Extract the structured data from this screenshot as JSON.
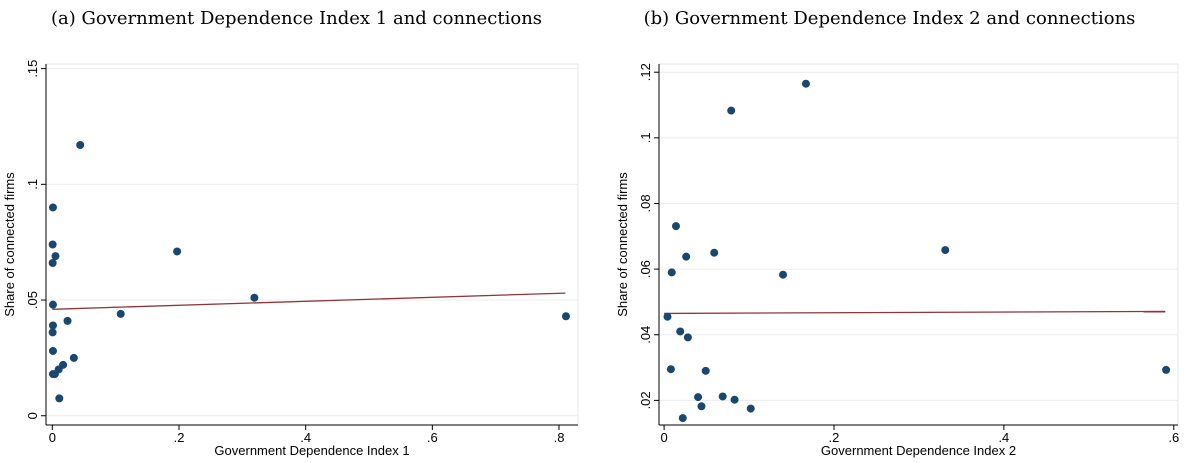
{
  "chart_data": [
    {
      "type": "scatter",
      "panel_caption": "(a) Government Dependence Index 1 and connections",
      "xlabel": "Government Dependence Index 1",
      "ylabel": "Share of connected firms",
      "xlim": [
        -0.01,
        0.83
      ],
      "ylim": [
        -0.004,
        0.152
      ],
      "xticks": [
        0,
        0.2,
        0.4,
        0.6,
        0.8
      ],
      "xtick_labels": [
        "0",
        ".2",
        ".4",
        ".6",
        ".8"
      ],
      "yticks": [
        0,
        0.05,
        0.1,
        0.15
      ],
      "ytick_labels": [
        "0",
        ".05",
        ".1",
        ".15"
      ],
      "grid": true,
      "legend": "none",
      "marker_color": "#1a476f",
      "fit_color": "#90353b",
      "points": [
        [
          0.044,
          0.117
        ],
        [
          0.001,
          0.09
        ],
        [
          0.0005,
          0.074
        ],
        [
          0.005,
          0.069
        ],
        [
          0.0005,
          0.066
        ],
        [
          0.197,
          0.071
        ],
        [
          0.319,
          0.051
        ],
        [
          0.001,
          0.048
        ],
        [
          0.108,
          0.044
        ],
        [
          0.811,
          0.043
        ],
        [
          0.024,
          0.041
        ],
        [
          0.001,
          0.039
        ],
        [
          0.0005,
          0.036
        ],
        [
          0.001,
          0.028
        ],
        [
          0.034,
          0.025
        ],
        [
          0.017,
          0.022
        ],
        [
          0.01,
          0.02
        ],
        [
          0.004,
          0.018
        ],
        [
          0.001,
          0.018
        ],
        [
          0.011,
          0.0075
        ]
      ],
      "fit_line": [
        [
          0,
          0.046
        ],
        [
          0.81,
          0.053
        ]
      ]
    },
    {
      "type": "scatter",
      "panel_caption": "(b) Government Dependence Index 2 and connections",
      "xlabel": "Government Dependence Index 2",
      "ylabel": "Share of connected firms",
      "xlim": [
        -0.006,
        0.605
      ],
      "ylim": [
        0.0125,
        0.1225
      ],
      "xticks": [
        0,
        0.2,
        0.4,
        0.6
      ],
      "xtick_labels": [
        "0",
        ".2",
        ".4",
        ".6"
      ],
      "yticks": [
        0.02,
        0.04,
        0.06,
        0.08,
        0.1,
        0.12
      ],
      "ytick_labels": [
        ".02",
        ".04",
        ".06",
        ".08",
        ".1",
        ".12"
      ],
      "grid": true,
      "legend": "none",
      "marker_color": "#1a476f",
      "fit_color": "#90353b",
      "points": [
        [
          0.167,
          0.1165
        ],
        [
          0.079,
          0.1083
        ],
        [
          0.014,
          0.0731
        ],
        [
          0.026,
          0.0638
        ],
        [
          0.059,
          0.065
        ],
        [
          0.009,
          0.059
        ],
        [
          0.14,
          0.0583
        ],
        [
          0.331,
          0.0658
        ],
        [
          0.004,
          0.0455
        ],
        [
          0.019,
          0.041
        ],
        [
          0.028,
          0.0392
        ],
        [
          0.049,
          0.029
        ],
        [
          0.008,
          0.0295
        ],
        [
          0.591,
          0.0293
        ],
        [
          0.04,
          0.021
        ],
        [
          0.069,
          0.0212
        ],
        [
          0.083,
          0.0202
        ],
        [
          0.044,
          0.0182
        ],
        [
          0.102,
          0.0175
        ],
        [
          0.022,
          0.0146
        ]
      ],
      "fit_line": [
        [
          0,
          0.0465
        ],
        [
          0.59,
          0.0471
        ]
      ]
    }
  ]
}
